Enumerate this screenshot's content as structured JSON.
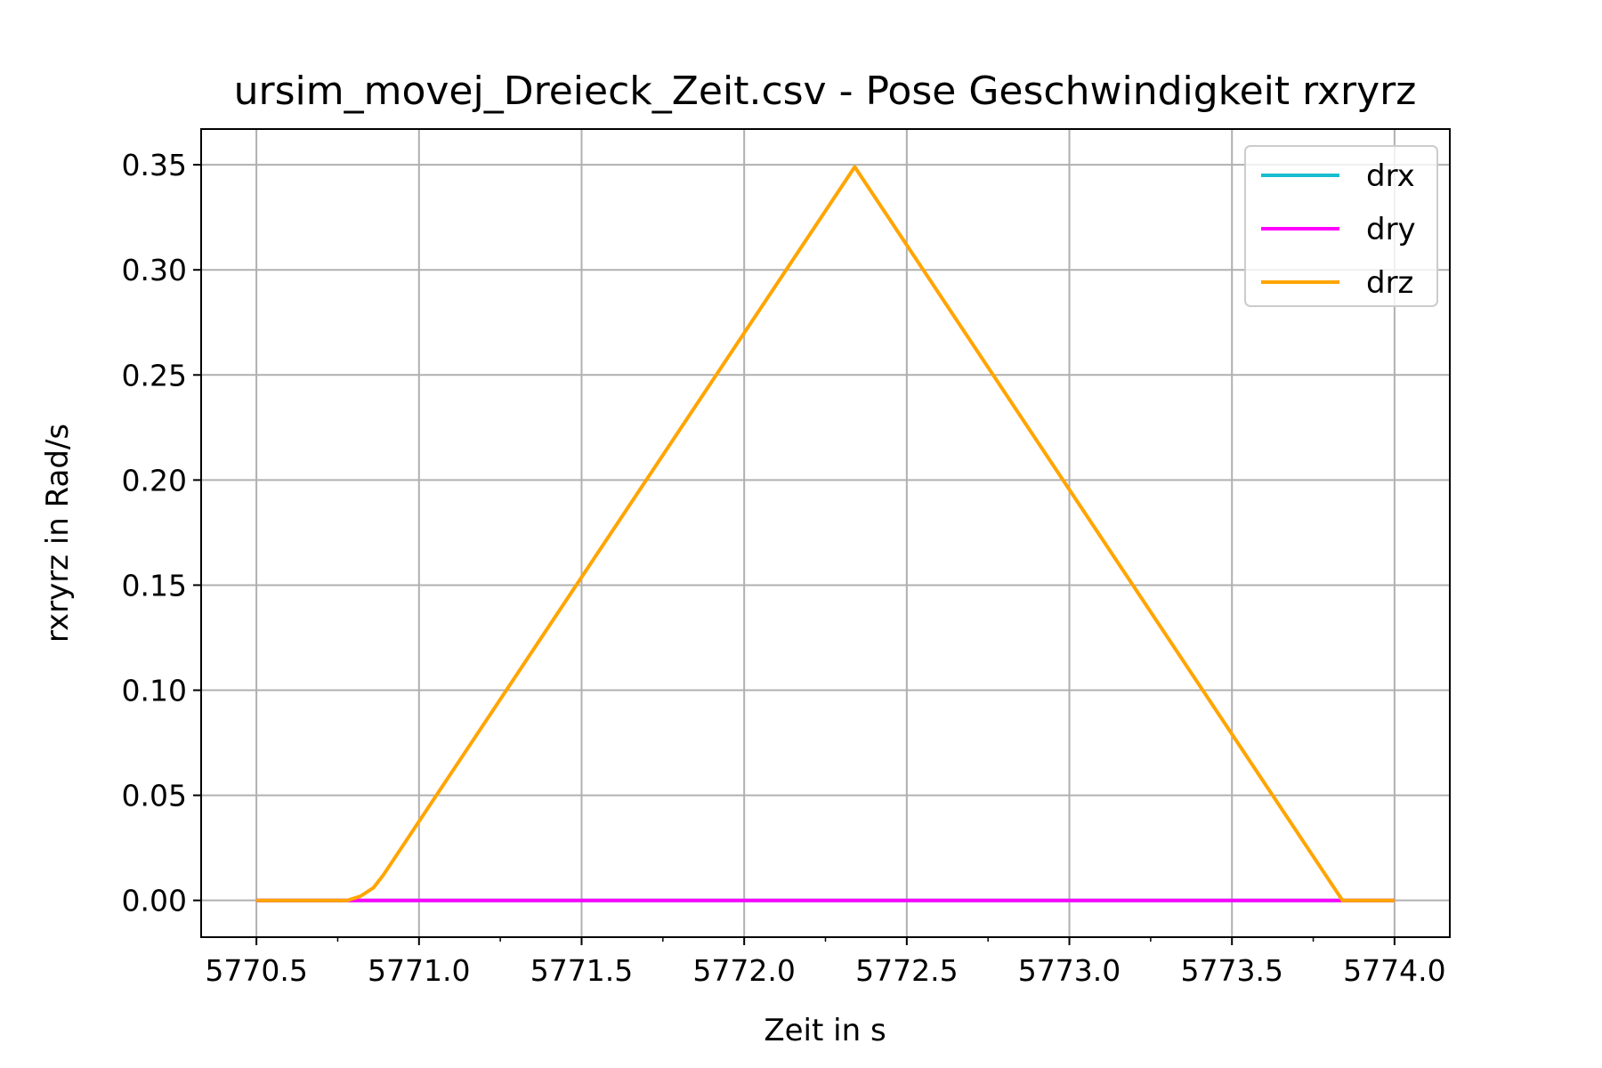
{
  "chart_data": {
    "type": "line",
    "title": "ursim_movej_Dreieck_Zeit.csv - Pose Geschwindigkeit rxryrz",
    "xlabel": "Zeit in s",
    "ylabel": "rxryrz in Rad/s",
    "xlim": [
      5770.33,
      5774.17
    ],
    "ylim": [
      -0.0175,
      0.367
    ],
    "xticks": [
      5770.5,
      5771.0,
      5771.5,
      5772.0,
      5772.5,
      5773.0,
      5773.5,
      5774.0
    ],
    "xtick_labels": [
      "5770.5",
      "5771.0",
      "5771.5",
      "5772.0",
      "5772.5",
      "5773.0",
      "5773.5",
      "5774.0"
    ],
    "yticks": [
      0.0,
      0.05,
      0.1,
      0.15,
      0.2,
      0.25,
      0.3,
      0.35
    ],
    "ytick_labels": [
      "0.00",
      "0.05",
      "0.10",
      "0.15",
      "0.20",
      "0.25",
      "0.30",
      "0.35"
    ],
    "grid": true,
    "legend_position": "top-right",
    "series": [
      {
        "name": "drx",
        "color": "#17becf",
        "x": [
          5770.5,
          5774.0
        ],
        "y": [
          0.0,
          0.0
        ]
      },
      {
        "name": "dry",
        "color": "#ff00ff",
        "x": [
          5770.5,
          5774.0
        ],
        "y": [
          0.0,
          0.0
        ]
      },
      {
        "name": "drz",
        "color": "#ffa500",
        "x": [
          5770.5,
          5770.78,
          5770.82,
          5770.86,
          5770.89,
          5770.92,
          5772.34,
          5773.84,
          5774.0
        ],
        "y": [
          0.0,
          0.0,
          0.002,
          0.006,
          0.012,
          0.019,
          0.349,
          0.0,
          0.0
        ]
      }
    ]
  }
}
